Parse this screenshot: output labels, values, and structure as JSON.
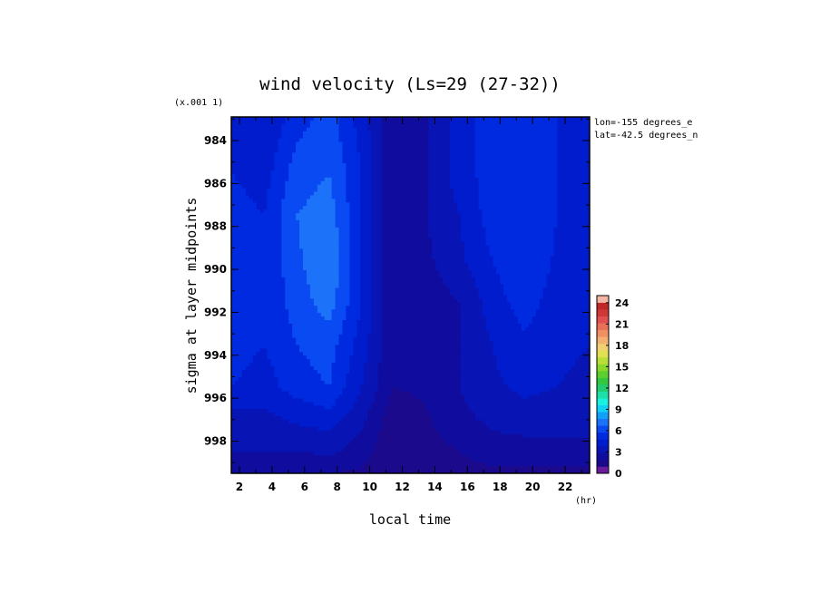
{
  "chart_data": {
    "type": "heatmap",
    "title": "wind velocity (Ls=29 (27-32))",
    "xlabel": "local time",
    "ylabel": "sigma at layer midpoints",
    "x_unit": "(hr)",
    "y_scale_note": "(x.001 1)",
    "annotations": [
      "lon=-155 degrees_e",
      "lat=-42.5 degrees_n"
    ],
    "x_ticks": [
      "2",
      "4",
      "6",
      "8",
      "10",
      "12",
      "14",
      "16",
      "18",
      "20",
      "22"
    ],
    "y_ticks": [
      "984",
      "986",
      "988",
      "990",
      "992",
      "994",
      "996",
      "998"
    ],
    "xlim": [
      1.5,
      23.5
    ],
    "ylim": [
      999.5,
      982.9
    ],
    "x": [
      1.5,
      3.5,
      5.5,
      7.5,
      9.5,
      11.5,
      13.5,
      15.5,
      17.5,
      19.5,
      21.5,
      23.5
    ],
    "y": [
      982.9,
      985.5,
      987.5,
      989.5,
      991.5,
      993.5,
      995.5,
      996.5,
      997.5,
      998.5,
      999.5
    ],
    "values": [
      [
        5.0,
        4.0,
        5.5,
        6.5,
        4.5,
        2.0,
        3.0,
        4.5,
        5.5,
        6.0,
        5.0,
        4.5
      ],
      [
        5.0,
        4.5,
        6.5,
        7.0,
        5.0,
        2.0,
        3.0,
        4.5,
        5.5,
        6.0,
        5.0,
        4.5
      ],
      [
        5.5,
        5.0,
        7.0,
        7.5,
        5.0,
        2.0,
        3.0,
        4.0,
        5.5,
        6.0,
        5.0,
        4.5
      ],
      [
        5.5,
        5.0,
        6.8,
        8.0,
        5.0,
        2.0,
        2.8,
        3.8,
        5.0,
        6.0,
        4.8,
        4.2
      ],
      [
        5.5,
        5.0,
        6.5,
        7.5,
        5.0,
        2.0,
        2.5,
        3.0,
        4.5,
        5.5,
        4.5,
        4.0
      ],
      [
        5.5,
        5.0,
        6.0,
        6.5,
        4.5,
        2.0,
        2.5,
        3.0,
        4.0,
        4.8,
        4.2,
        4.0
      ],
      [
        5.0,
        4.5,
        5.5,
        6.0,
        4.0,
        2.0,
        2.2,
        3.0,
        3.8,
        4.2,
        4.0,
        3.8
      ],
      [
        4.0,
        4.0,
        4.5,
        5.0,
        3.5,
        1.5,
        2.0,
        2.8,
        3.5,
        3.8,
        3.5,
        3.5
      ],
      [
        3.5,
        3.5,
        3.8,
        4.0,
        3.0,
        1.2,
        1.8,
        2.5,
        3.0,
        3.2,
        3.2,
        3.2
      ],
      [
        3.0,
        3.0,
        3.0,
        3.2,
        2.5,
        1.0,
        1.5,
        2.0,
        2.5,
        2.5,
        2.5,
        2.5
      ],
      [
        2.0,
        2.0,
        2.0,
        2.0,
        1.8,
        1.0,
        1.2,
        1.5,
        1.8,
        1.8,
        1.8,
        1.8
      ]
    ],
    "colorbar": {
      "min": 0,
      "max": 25,
      "step": 1,
      "tick_labels": [
        "0",
        "3",
        "6",
        "9",
        "12",
        "15",
        "18",
        "21",
        "24"
      ],
      "colors": [
        "#6a1c9c",
        "#1c0a8c",
        "#100c9e",
        "#0814b4",
        "#001ccc",
        "#002ae0",
        "#0a4af2",
        "#1c72f8",
        "#10a0f8",
        "#10d2f4",
        "#18f0e0",
        "#1ce0a8",
        "#22cc70",
        "#34c840",
        "#5cd030",
        "#8ad82c",
        "#b8e036",
        "#e0e050",
        "#f0d070",
        "#f4b070",
        "#f09060",
        "#e87058",
        "#e05050",
        "#d03838",
        "#c02828",
        "#f4b6a4"
      ]
    }
  }
}
